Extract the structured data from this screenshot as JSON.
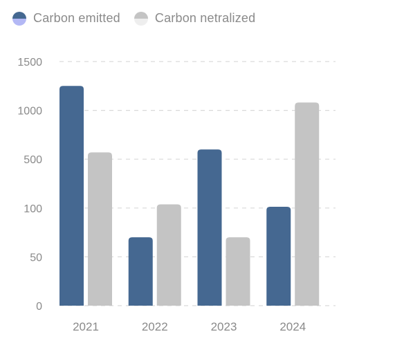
{
  "legend": {
    "items": [
      {
        "label": "Carbon emitted",
        "color": "#456891",
        "swatch_bottom": "#b3b8f5"
      },
      {
        "label": "Carbon netralized",
        "color": "#c4c4c4",
        "swatch_bottom": "#eeeeee"
      }
    ]
  },
  "colors": {
    "grid": "#d9d9d9",
    "tick_text": "#8a8a8a"
  },
  "chart_data": {
    "type": "bar",
    "categories": [
      "2021",
      "2022",
      "2023",
      "2024"
    ],
    "y_ticks": [
      "0",
      "50",
      "100",
      "500",
      "1000",
      "1500"
    ],
    "y_scale": "categorical-ticks (non-linear, evenly spaced labels)",
    "grid": true,
    "legend_position": "top-left",
    "series": [
      {
        "name": "Carbon emitted",
        "color": "#456891",
        "values": [
          1250,
          70,
          600,
          110
        ]
      },
      {
        "name": "Carbon netralized",
        "color": "#c4c4c4",
        "values": [
          570,
          130,
          70,
          1080
        ]
      }
    ]
  }
}
